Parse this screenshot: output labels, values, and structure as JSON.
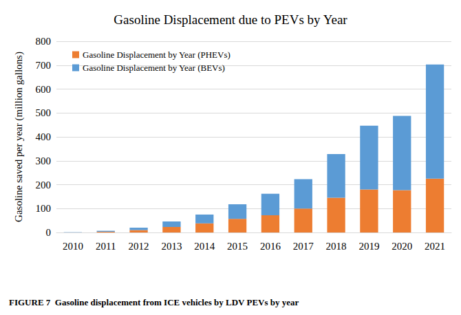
{
  "chart_data": {
    "type": "bar",
    "title": "Gasoline Displacement due to PEVs by Year",
    "y_label": "Gasoline saved per year (million gallons)",
    "caption": "FIGURE 7  Gasoline displacement from ICE vehicles by LDV PEVs by year",
    "categories": [
      "2010",
      "2011",
      "2012",
      "2013",
      "2014",
      "2015",
      "2016",
      "2017",
      "2018",
      "2019",
      "2020",
      "2021"
    ],
    "series": [
      {
        "name": "Gasoline Displacement by Year (PHEVs)",
        "color": "#ed7d31",
        "values": [
          0,
          3,
          10,
          23,
          38,
          57,
          72,
          100,
          145,
          180,
          177,
          225
        ]
      },
      {
        "name": "Gasoline Displacement by Year (BEVs)",
        "color": "#5b9bd5",
        "values": [
          1,
          4,
          10,
          23,
          37,
          61,
          90,
          123,
          183,
          267,
          311,
          478
        ]
      }
    ],
    "stacked": true,
    "ylim": [
      0,
      800
    ],
    "yticks": [
      0,
      100,
      200,
      300,
      400,
      500,
      600,
      700,
      800
    ],
    "grid": true,
    "legend": "upper left"
  }
}
